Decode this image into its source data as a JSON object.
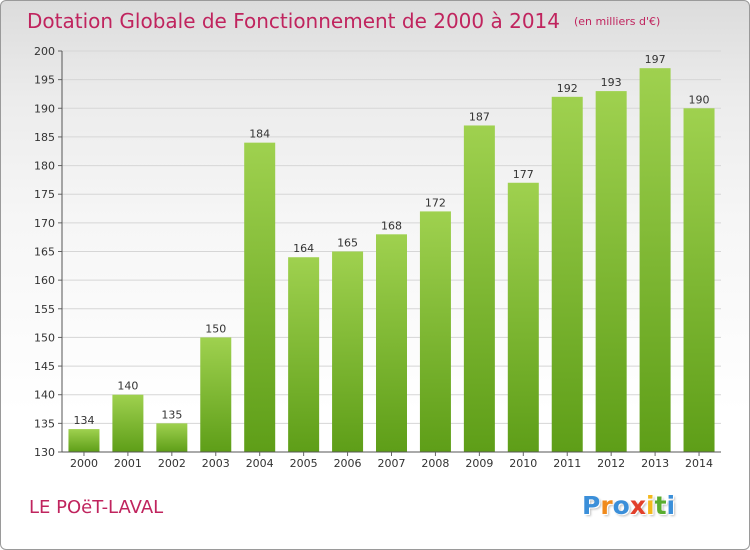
{
  "header": {
    "title": "Dotation Globale de Fonctionnement de 2000 à 2014",
    "unit": "(en milliers d'€)"
  },
  "footer": {
    "place": "LE POëT-LAVAL"
  },
  "brand": {
    "name": "Proxiti",
    "letters": [
      "P",
      "r",
      "o",
      "x",
      "i",
      "t",
      "i"
    ],
    "colors": [
      "#3b8fd9",
      "#f08a1c",
      "#3b8fd9",
      "#e23f2a",
      "#f4b81c",
      "#59ad2e",
      "#3b8fd9"
    ]
  },
  "colors": {
    "title": "#c0245e",
    "bar_top": "#9fd14f",
    "bar_bottom": "#5e9e18"
  },
  "chart_data": {
    "type": "bar",
    "categories": [
      "2000",
      "2001",
      "2002",
      "2003",
      "2004",
      "2005",
      "2006",
      "2007",
      "2008",
      "2009",
      "2010",
      "2011",
      "2012",
      "2013",
      "2014"
    ],
    "values": [
      134,
      140,
      135,
      150,
      184,
      164,
      165,
      168,
      172,
      187,
      177,
      192,
      193,
      197,
      190
    ],
    "data_labels": [
      "134",
      "140",
      "135",
      "150",
      "184",
      "164",
      "165",
      "168",
      "172",
      "187",
      "177",
      "192",
      "193",
      "197",
      "190"
    ],
    "ylim": [
      130,
      200
    ],
    "yticks": [
      130,
      135,
      140,
      145,
      150,
      155,
      160,
      165,
      170,
      175,
      180,
      185,
      190,
      195,
      200
    ],
    "grid": true
  }
}
